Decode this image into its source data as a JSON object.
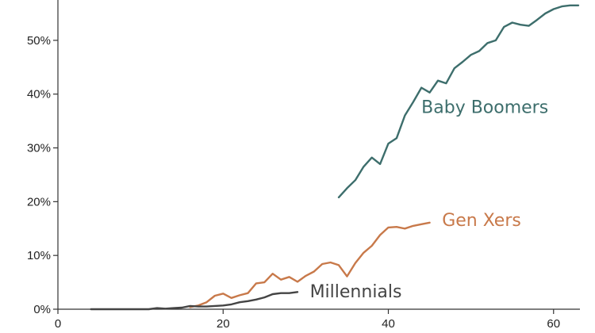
{
  "chart_data": {
    "type": "line",
    "title": "",
    "xlabel": "",
    "ylabel": "",
    "xlim": [
      0,
      63
    ],
    "ylim": [
      0,
      57.5
    ],
    "grid": false,
    "legend": "direct-labels",
    "x_ticks": [
      {
        "value": 0,
        "label": "0"
      },
      {
        "value": 20,
        "label": "20"
      },
      {
        "value": 40,
        "label": "40"
      },
      {
        "value": 60,
        "label": "60"
      }
    ],
    "y_ticks": [
      {
        "value": 0,
        "label": "0%"
      },
      {
        "value": 10,
        "label": "10%"
      },
      {
        "value": 20,
        "label": "20%"
      },
      {
        "value": 30,
        "label": "30%"
      },
      {
        "value": 40,
        "label": "40%"
      },
      {
        "value": 50,
        "label": "50%"
      }
    ],
    "series": [
      {
        "name": "Baby Boomers",
        "color": "#3d6e6c",
        "label_at": [
          44,
          36.5
        ],
        "points": [
          [
            34,
            20.8
          ],
          [
            35,
            22.5
          ],
          [
            36,
            24.0
          ],
          [
            37,
            26.5
          ],
          [
            38,
            28.2
          ],
          [
            39,
            27.0
          ],
          [
            40,
            30.8
          ],
          [
            41,
            31.8
          ],
          [
            42,
            36.0
          ],
          [
            43,
            38.5
          ],
          [
            44,
            41.2
          ],
          [
            45,
            40.3
          ],
          [
            46,
            42.5
          ],
          [
            47,
            42.0
          ],
          [
            48,
            44.8
          ],
          [
            49,
            46.0
          ],
          [
            50,
            47.3
          ],
          [
            51,
            48.0
          ],
          [
            52,
            49.5
          ],
          [
            53,
            50.0
          ],
          [
            54,
            52.5
          ],
          [
            55,
            53.3
          ],
          [
            56,
            52.9
          ],
          [
            57,
            52.7
          ],
          [
            58,
            53.8
          ],
          [
            59,
            55.0
          ],
          [
            60,
            55.8
          ],
          [
            61,
            56.3
          ],
          [
            62,
            56.5
          ],
          [
            63,
            56.5
          ]
        ]
      },
      {
        "name": "Gen Xers",
        "color": "#c8794a",
        "label_at": [
          46.5,
          15.5
        ],
        "points": [
          [
            16,
            0.4
          ],
          [
            17,
            0.7
          ],
          [
            18,
            1.3
          ],
          [
            19,
            2.5
          ],
          [
            20,
            2.9
          ],
          [
            21,
            2.1
          ],
          [
            22,
            2.6
          ],
          [
            23,
            3.0
          ],
          [
            24,
            4.8
          ],
          [
            25,
            5.0
          ],
          [
            26,
            6.6
          ],
          [
            27,
            5.5
          ],
          [
            28,
            6.0
          ],
          [
            29,
            5.1
          ],
          [
            30,
            6.2
          ],
          [
            31,
            7.0
          ],
          [
            32,
            8.4
          ],
          [
            33,
            8.7
          ],
          [
            34,
            8.2
          ],
          [
            35,
            6.1
          ],
          [
            36,
            8.6
          ],
          [
            37,
            10.5
          ],
          [
            38,
            11.8
          ],
          [
            39,
            13.8
          ],
          [
            40,
            15.2
          ],
          [
            41,
            15.3
          ],
          [
            42,
            15.0
          ],
          [
            43,
            15.5
          ],
          [
            44,
            15.8
          ],
          [
            45,
            16.1
          ]
        ]
      },
      {
        "name": "Millennials",
        "color": "#444444",
        "label_at": [
          30.5,
          2.2
        ],
        "points": [
          [
            4,
            0.0
          ],
          [
            6,
            0.0
          ],
          [
            8,
            0.0
          ],
          [
            10,
            0.0
          ],
          [
            11,
            0.0
          ],
          [
            12,
            0.2
          ],
          [
            13,
            0.1
          ],
          [
            14,
            0.2
          ],
          [
            15,
            0.3
          ],
          [
            16,
            0.6
          ],
          [
            17,
            0.5
          ],
          [
            18,
            0.5
          ],
          [
            19,
            0.6
          ],
          [
            20,
            0.7
          ],
          [
            21,
            0.9
          ],
          [
            22,
            1.3
          ],
          [
            23,
            1.5
          ],
          [
            24,
            1.8
          ],
          [
            25,
            2.2
          ],
          [
            26,
            2.8
          ],
          [
            27,
            3.0
          ],
          [
            28,
            3.0
          ],
          [
            29,
            3.2
          ]
        ]
      }
    ]
  }
}
